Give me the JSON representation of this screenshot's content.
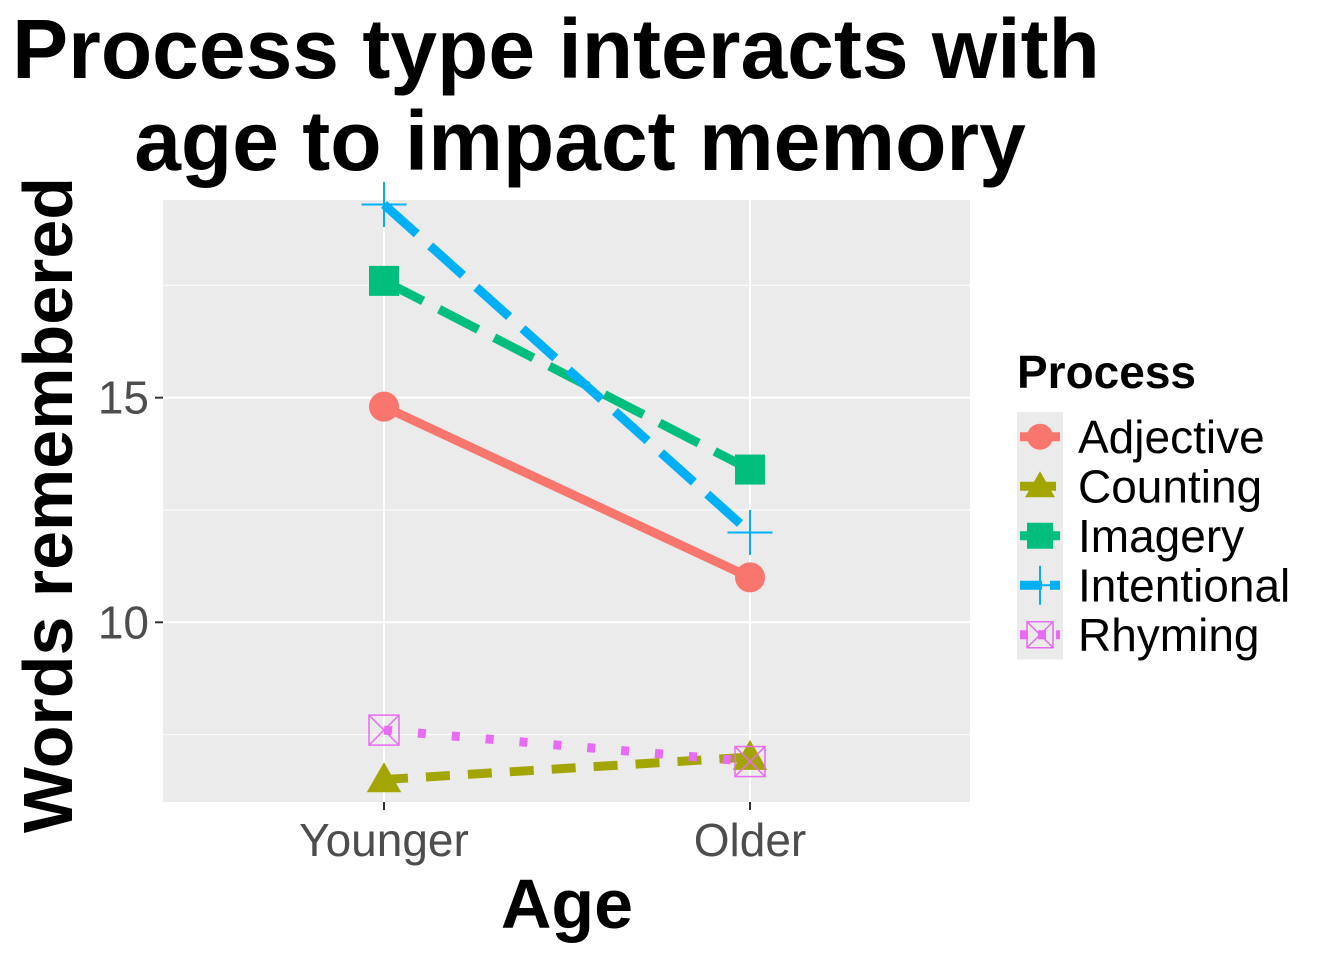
{
  "chart_data": {
    "type": "line",
    "title_lines": [
      "Process type interacts with",
      "age to impact memory"
    ],
    "xlabel": "Age",
    "ylabel": "Words remembered",
    "categories": [
      "Younger",
      "Older"
    ],
    "ylim": [
      6.0,
      19.4
    ],
    "yticks": [
      10,
      15
    ],
    "grid": true,
    "legend": {
      "title": "Process",
      "position": "right"
    },
    "series": [
      {
        "name": "Adjective",
        "values": [
          14.8,
          11.0
        ],
        "color": "#F8766D",
        "shape": "circle",
        "linetype": "solid"
      },
      {
        "name": "Counting",
        "values": [
          6.5,
          7.0
        ],
        "color": "#A3A500",
        "shape": "triangle",
        "linetype": "dashed"
      },
      {
        "name": "Imagery",
        "values": [
          17.6,
          13.4
        ],
        "color": "#00BF7D",
        "shape": "square",
        "linetype": "longdash"
      },
      {
        "name": "Intentional",
        "values": [
          19.3,
          12.0
        ],
        "color": "#00B0F6",
        "shape": "plus",
        "linetype": "longdash"
      },
      {
        "name": "Rhyming",
        "values": [
          7.6,
          6.9
        ],
        "color": "#E76BF3",
        "shape": "squarex",
        "linetype": "dotted"
      }
    ]
  }
}
